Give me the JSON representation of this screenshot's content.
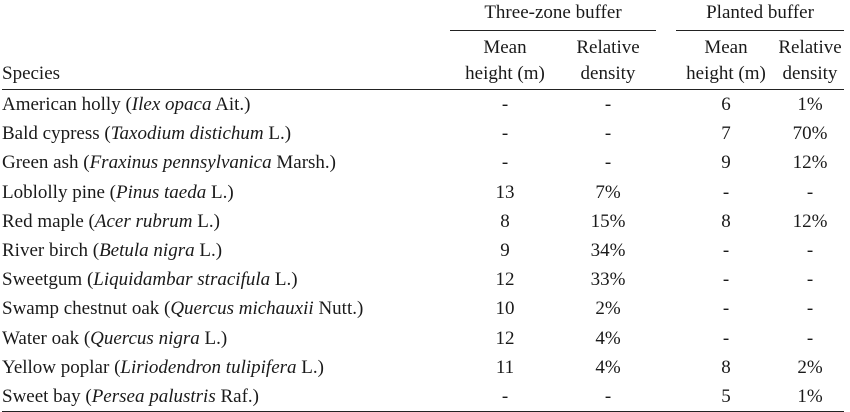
{
  "table": {
    "group_headers": {
      "three_zone": "Three-zone buffer",
      "planted": "Planted buffer"
    },
    "species_header": "Species",
    "sub_headers": {
      "mean_height_line1": "Mean",
      "mean_height_line2": "height (m)",
      "relative_density_line1": "Relative",
      "relative_density_line2": "density"
    },
    "rows": [
      {
        "common": "American holly (",
        "scientific": "Ilex opaca",
        "authority": " Ait.)",
        "tz_height": "-",
        "tz_density": "-",
        "pb_height": "6",
        "pb_density": "1%"
      },
      {
        "common": "Bald cypress (",
        "scientific": "Taxodium distichum",
        "authority": " L.)",
        "tz_height": "-",
        "tz_density": "-",
        "pb_height": "7",
        "pb_density": "70%"
      },
      {
        "common": "Green ash (",
        "scientific": "Fraxinus pennsylvanica",
        "authority": " Marsh.)",
        "tz_height": "-",
        "tz_density": "-",
        "pb_height": "9",
        "pb_density": "12%"
      },
      {
        "common": "Loblolly pine (",
        "scientific": "Pinus taeda",
        "authority": " L.)",
        "tz_height": "13",
        "tz_density": "7%",
        "pb_height": "-",
        "pb_density": "-"
      },
      {
        "common": "Red maple (",
        "scientific": "Acer rubrum",
        "authority": " L.)",
        "tz_height": "8",
        "tz_density": "15%",
        "pb_height": "8",
        "pb_density": "12%"
      },
      {
        "common": "River birch (",
        "scientific": "Betula nigra",
        "authority": " L.)",
        "tz_height": "9",
        "tz_density": "34%",
        "pb_height": "-",
        "pb_density": "-"
      },
      {
        "common": "Sweetgum (",
        "scientific": "Liquidambar stracifula",
        "authority": " L.)",
        "tz_height": "12",
        "tz_density": "33%",
        "pb_height": "-",
        "pb_density": "-"
      },
      {
        "common": "Swamp chestnut oak (",
        "scientific": "Quercus michauxii",
        "authority": " Nutt.)",
        "tz_height": "10",
        "tz_density": "2%",
        "pb_height": "-",
        "pb_density": "-"
      },
      {
        "common": "Water oak (",
        "scientific": "Quercus nigra",
        "authority": " L.)",
        "tz_height": "12",
        "tz_density": "4%",
        "pb_height": "-",
        "pb_density": "-"
      },
      {
        "common": "Yellow poplar (",
        "scientific": "Liriodendron tulipifera",
        "authority": " L.)",
        "tz_height": "11",
        "tz_density": "4%",
        "pb_height": "8",
        "pb_density": "2%"
      },
      {
        "common": "Sweet bay (",
        "scientific": "Persea palustris",
        "authority": " Raf.)",
        "tz_height": "-",
        "tz_density": "-",
        "pb_height": "5",
        "pb_density": "1%"
      }
    ]
  }
}
